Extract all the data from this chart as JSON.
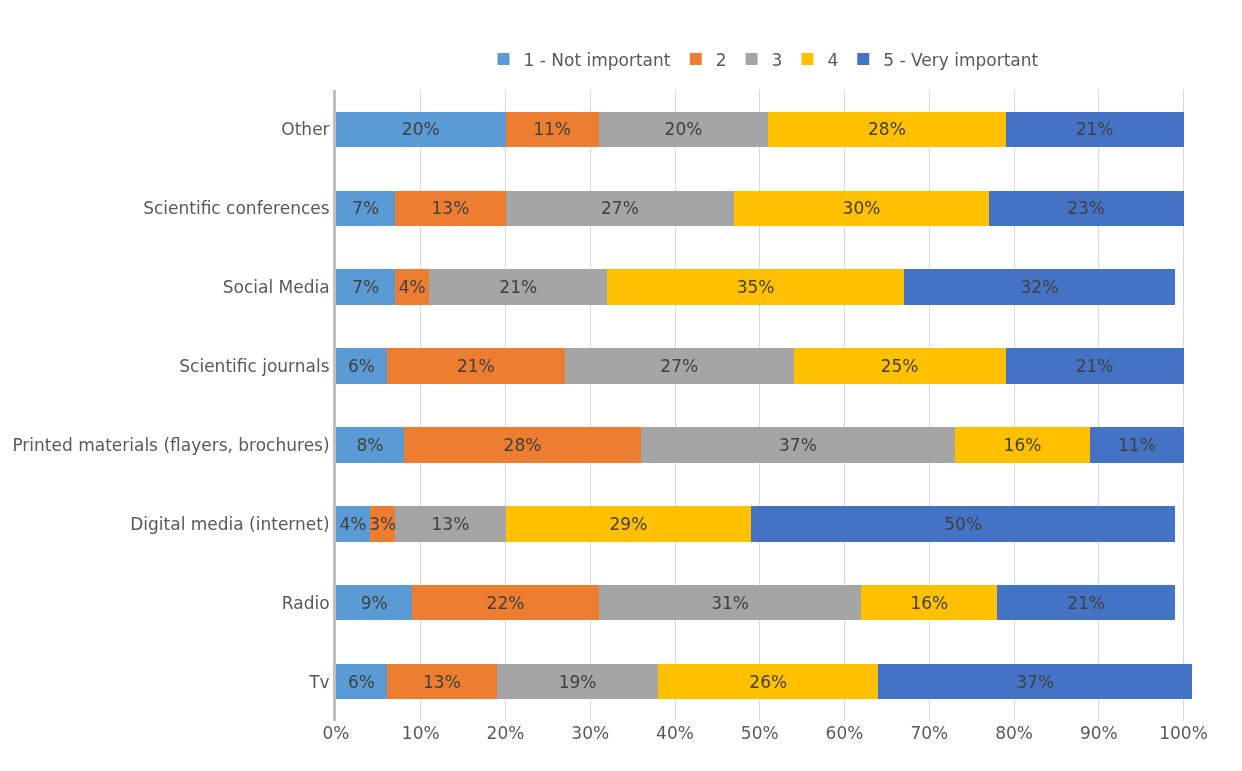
{
  "chart_data": {
    "type": "bar",
    "orientation": "horizontal",
    "stacked": true,
    "legend": "top",
    "grid": "x",
    "categories": [
      "Other",
      "Scientific conferences",
      "Social Media",
      "Scientific journals",
      "Printed materials (flayers, brochures)",
      "Digital media (internet)",
      "Radio",
      "Tv"
    ],
    "xlim": [
      0,
      101
    ],
    "xticks": [
      {
        "value": 0,
        "label": "0%"
      },
      {
        "value": 10,
        "label": "10%"
      },
      {
        "value": 20,
        "label": "20%"
      },
      {
        "value": 30,
        "label": "30%"
      },
      {
        "value": 40,
        "label": "40%"
      },
      {
        "value": 50,
        "label": "50%"
      },
      {
        "value": 60,
        "label": "60%"
      },
      {
        "value": 70,
        "label": "70%"
      },
      {
        "value": 80,
        "label": "80%"
      },
      {
        "value": 90,
        "label": "90%"
      },
      {
        "value": 100,
        "label": "100%"
      }
    ],
    "series": [
      {
        "name": "1 - Not important",
        "color": "#5b9bd5",
        "values": [
          20,
          7,
          7,
          6,
          8,
          4,
          9,
          6
        ],
        "value_labels": [
          "20%",
          "7%",
          "7%",
          "6%",
          "8%",
          "4%",
          "9%",
          "6%"
        ]
      },
      {
        "name": "2",
        "color": "#ed7d31",
        "values": [
          11,
          13,
          4,
          21,
          28,
          3,
          22,
          13
        ],
        "value_labels": [
          "11%",
          "13%",
          "4%",
          "21%",
          "28%",
          "3%",
          "22%",
          "13%"
        ]
      },
      {
        "name": "3",
        "color": "#a5a5a5",
        "values": [
          20,
          27,
          21,
          27,
          37,
          13,
          31,
          19
        ],
        "value_labels": [
          "20%",
          "27%",
          "21%",
          "27%",
          "37%",
          "13%",
          "31%",
          "19%"
        ]
      },
      {
        "name": "4",
        "color": "#ffc000",
        "values": [
          28,
          30,
          35,
          25,
          16,
          29,
          16,
          26
        ],
        "value_labels": [
          "28%",
          "30%",
          "35%",
          "25%",
          "16%",
          "29%",
          "16%",
          "26%"
        ]
      },
      {
        "name": "5 - Very important",
        "color": "#4472c4",
        "values": [
          21,
          23,
          32,
          21,
          11,
          50,
          21,
          37
        ],
        "value_labels": [
          "21%",
          "23%",
          "32%",
          "21%",
          "11%",
          "50%",
          "21%",
          "37%"
        ]
      }
    ]
  }
}
